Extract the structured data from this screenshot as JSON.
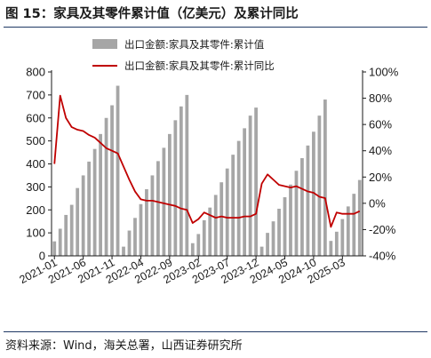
{
  "figure": {
    "title": "图 15：家具及其零件累计值（亿美元）及累计同比",
    "source": "资料来源：Wind，海关总署，山西证券研究所"
  },
  "chart_data": {
    "type": "bar+line",
    "series": [
      {
        "name": "出口金额:家具及其零件:累计值",
        "type": "bar",
        "axis": "left",
        "color": "#a6a6a6",
        "values": [
          63,
          118,
          178,
          222,
          295,
          350,
          410,
          465,
          530,
          600,
          655,
          740,
          40,
          110,
          165,
          225,
          290,
          350,
          412,
          470,
          530,
          590,
          650,
          700,
          55,
          95,
          155,
          210,
          265,
          320,
          380,
          440,
          500,
          555,
          610,
          645,
          40,
          100,
          150,
          205,
          255,
          310,
          370,
          425,
          480,
          540,
          610,
          680,
          65,
          105,
          160,
          215,
          270,
          330
        ]
      },
      {
        "name": "出口金额:家具及其零件:累计同比",
        "type": "line",
        "axis": "right",
        "color": "#c00000",
        "values": [
          30,
          82,
          65,
          58,
          56,
          55,
          52,
          50,
          46,
          42,
          40,
          38,
          28,
          18,
          9,
          3,
          2,
          2,
          1,
          0,
          -1,
          -2,
          -4,
          -5,
          -15,
          -12,
          -7,
          -9,
          -11,
          -10,
          -11,
          -11,
          -11,
          -10,
          -10,
          -8,
          15,
          22,
          18,
          14,
          13,
          12,
          13,
          11,
          9,
          8,
          5,
          4,
          -18,
          -7,
          -8,
          -8,
          -8,
          -6
        ]
      }
    ],
    "x_tick_labels": [
      "2021-01",
      "2021-06",
      "2021-11",
      "2022-04",
      "2022-09",
      "2023-02",
      "2023-07",
      "2023-12",
      "2024-05",
      "2024-10",
      "2025-03"
    ],
    "x_tick_every": 5,
    "left_axis": {
      "min": 0,
      "max": 800,
      "step": 100
    },
    "right_axis": {
      "min": -40,
      "max": 100,
      "step": 20,
      "unit": "%"
    },
    "grid": false,
    "legend": "top-center"
  }
}
